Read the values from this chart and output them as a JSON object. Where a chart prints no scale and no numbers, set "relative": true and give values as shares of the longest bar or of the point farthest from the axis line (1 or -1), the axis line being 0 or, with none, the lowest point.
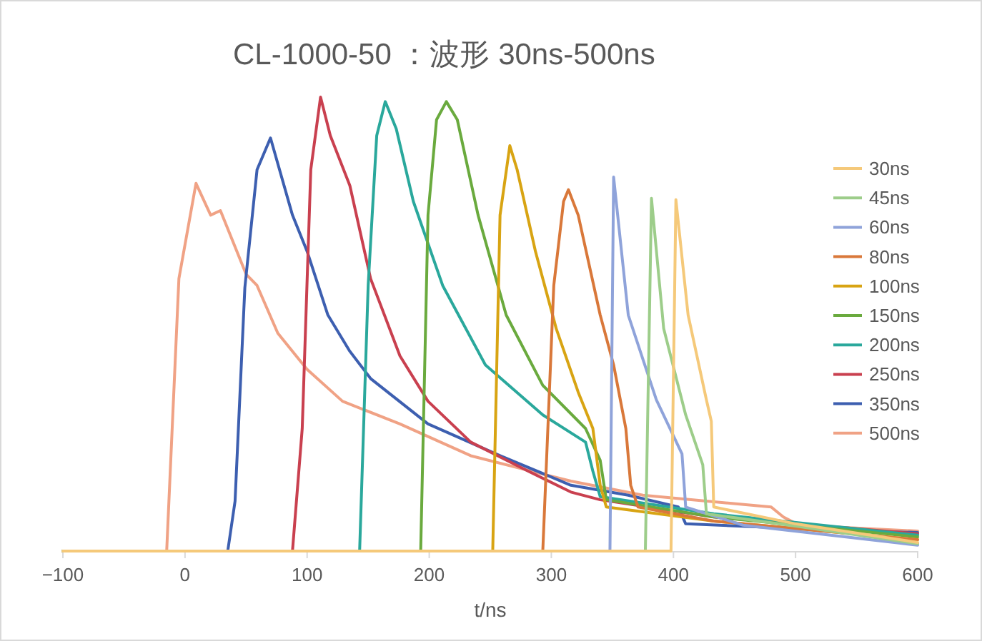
{
  "chart_data": {
    "type": "line",
    "title": "CL-1000-50 ：波形 30ns-500ns",
    "xlabel": "t/ns",
    "relative": true,
    "legend": "right",
    "grid": false,
    "marker": "none",
    "line_style": "solid",
    "xlim": [
      -100,
      600
    ],
    "xticks": [
      {
        "value": -100,
        "label": "−100"
      },
      0,
      100,
      200,
      300,
      400,
      500,
      600
    ],
    "series": [
      {
        "name": "30ns",
        "color": "#f5c97a",
        "x": [
          -100,
          398,
          402,
          412,
          427,
          431,
          433,
          500,
          600
        ],
        "values": [
          0,
          0,
          0.774,
          0.52,
          0.333,
          0.286,
          0.097,
          0.06,
          0.019
        ]
      },
      {
        "name": "45ns",
        "color": "#9dcd8a",
        "x": [
          -100,
          377,
          382,
          392,
          410,
          424,
          427,
          500,
          600
        ],
        "values": [
          0,
          0,
          0.777,
          0.49,
          0.3,
          0.19,
          0.082,
          0.055,
          0.016
        ]
      },
      {
        "name": "60ns",
        "color": "#8fa3da",
        "x": [
          -100,
          348,
          351,
          363,
          386,
          407,
          410,
          457,
          600
        ],
        "values": [
          0,
          0,
          0.824,
          0.52,
          0.333,
          0.214,
          0.097,
          0.057,
          0.013
        ]
      },
      {
        "name": "80ns",
        "color": "#d9783a",
        "x": [
          -100,
          293,
          302,
          310,
          314,
          322,
          340,
          351,
          361,
          365,
          371,
          433,
          600
        ],
        "values": [
          0,
          0,
          0.585,
          0.77,
          0.796,
          0.74,
          0.52,
          0.41,
          0.27,
          0.145,
          0.097,
          0.066,
          0.025
        ]
      },
      {
        "name": "100ns",
        "color": "#d8a413",
        "x": [
          -100,
          252,
          258,
          266,
          272,
          287,
          304,
          322,
          334,
          340,
          345,
          433,
          600
        ],
        "values": [
          0,
          0,
          0.74,
          0.893,
          0.84,
          0.66,
          0.49,
          0.35,
          0.27,
          0.145,
          0.097,
          0.066,
          0.025
        ]
      },
      {
        "name": "150ns",
        "color": "#6aaa3e",
        "x": [
          -100,
          193,
          199,
          206,
          214,
          223,
          240,
          263,
          293,
          328,
          340,
          345,
          433,
          600
        ],
        "values": [
          0,
          0,
          0.74,
          0.95,
          0.99,
          0.95,
          0.74,
          0.52,
          0.365,
          0.27,
          0.2,
          0.113,
          0.075,
          0.031
        ]
      },
      {
        "name": "200ns",
        "color": "#2aa89c",
        "x": [
          -100,
          143,
          150,
          157,
          164,
          173,
          187,
          211,
          246,
          293,
          328,
          334,
          340,
          433,
          600
        ],
        "values": [
          0,
          0,
          0.585,
          0.915,
          0.99,
          0.93,
          0.77,
          0.585,
          0.41,
          0.3,
          0.24,
          0.176,
          0.12,
          0.082,
          0.035
        ]
      },
      {
        "name": "250ns",
        "color": "#c9404f",
        "x": [
          -100,
          88,
          96,
          103,
          111,
          119,
          135,
          152,
          176,
          199,
          234,
          281,
          316,
          340,
          433,
          600
        ],
        "values": [
          0,
          0,
          0.27,
          0.84,
          1,
          0.915,
          0.805,
          0.6,
          0.43,
          0.33,
          0.24,
          0.176,
          0.13,
          0.113,
          0.075,
          0.038
        ]
      },
      {
        "name": "350ns",
        "color": "#3d5fb0",
        "x": [
          -100,
          35,
          41,
          49,
          59,
          70,
          88,
          100,
          117,
          135,
          152,
          199,
          258,
          316,
          363,
          404,
          410,
          550,
          600
        ],
        "values": [
          0,
          0,
          0.11,
          0.58,
          0.84,
          0.91,
          0.74,
          0.66,
          0.52,
          0.44,
          0.38,
          0.28,
          0.21,
          0.145,
          0.123,
          0.097,
          0.06,
          0.044,
          0.041
        ]
      },
      {
        "name": "500ns",
        "color": "#f0a285",
        "x": [
          -100,
          -15,
          -5,
          9,
          21,
          29,
          50,
          59,
          76,
          100,
          129,
          176,
          234,
          316,
          375,
          480,
          490,
          503,
          600
        ],
        "values": [
          0,
          0,
          0.6,
          0.81,
          0.74,
          0.75,
          0.61,
          0.585,
          0.48,
          0.4,
          0.33,
          0.28,
          0.21,
          0.154,
          0.123,
          0.097,
          0.075,
          0.057,
          0.044
        ]
      }
    ]
  }
}
